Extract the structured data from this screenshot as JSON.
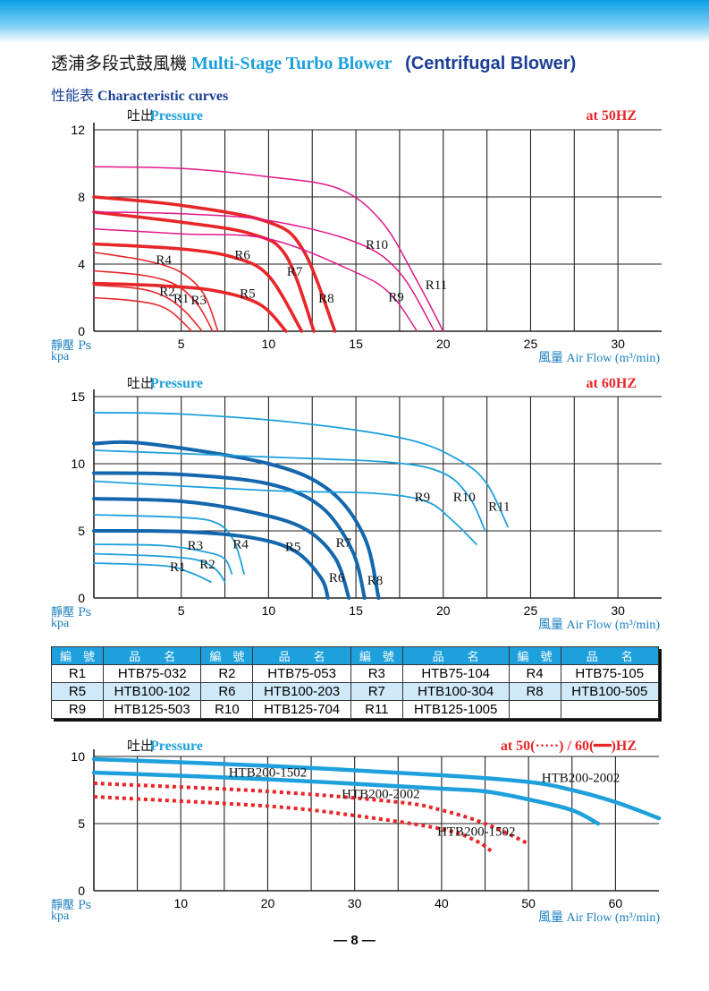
{
  "header": {
    "title_zh": "透浦多段式鼓風機",
    "title_en": "Multi-Stage Turbo Blower",
    "title_en2": "(Centrifugal Blower)",
    "subtitle_zh": "性能表",
    "subtitle_en": "Characteristic curves",
    "page_number": "— 8 —"
  },
  "colors": {
    "red": "#e8262a",
    "magenta": "#e0178a",
    "blue_thick": "#1467ad",
    "blue_thin": "#1ea0dc",
    "axis_label": "#1b7fc0"
  },
  "chart_data": [
    {
      "type": "line",
      "title_zh": "吐出",
      "title_en": "Pressure",
      "freq": "at  50HZ",
      "ylabel_zh": "靜壓 Ps",
      "ylabel_unit": "kpa",
      "xlabel": "風量  Air Flow (m³/min)",
      "xlim": [
        0,
        32.5
      ],
      "ylim": [
        0,
        12
      ],
      "xticks": [
        "5",
        "10",
        "15",
        "20",
        "25",
        "30"
      ],
      "xtick_values": [
        5,
        10,
        15,
        20,
        25,
        30
      ],
      "yticks": [
        "0",
        "4",
        "8",
        "12"
      ],
      "ytick_values": [
        0,
        4,
        8,
        12
      ],
      "xgrid_step": 2.5,
      "ygrid_step": 4,
      "series": [
        {
          "name": "R1",
          "style": "red-thin",
          "label_at": [
            5,
            1.7
          ],
          "points": [
            [
              0,
              2
            ],
            [
              2,
              1.85
            ],
            [
              3.5,
              1.6
            ],
            [
              4.5,
              1.1
            ],
            [
              5.6,
              0
            ]
          ]
        },
        {
          "name": "R2",
          "style": "red-thin",
          "label_at": [
            4.2,
            2.1
          ],
          "points": [
            [
              0,
              2.75
            ],
            [
              2.5,
              2.55
            ],
            [
              4,
              2.1
            ],
            [
              5.2,
              1.2
            ],
            [
              6.2,
              0
            ]
          ]
        },
        {
          "name": "R3",
          "style": "red-thin",
          "label_at": [
            6,
            1.6
          ],
          "points": [
            [
              0,
              3.6
            ],
            [
              3,
              3.3
            ],
            [
              4.8,
              2.7
            ],
            [
              6,
              1.5
            ],
            [
              6.8,
              0
            ]
          ]
        },
        {
          "name": "R4",
          "style": "red-thin",
          "label_at": [
            4,
            4
          ],
          "points": [
            [
              0,
              4.7
            ],
            [
              3,
              4.2
            ],
            [
              5,
              3.5
            ],
            [
              6.3,
              2.2
            ],
            [
              7.1,
              0
            ]
          ]
        },
        {
          "name": "R5",
          "style": "red-thick",
          "label_at": [
            8.8,
            2
          ],
          "points": [
            [
              0,
              2.85
            ],
            [
              4,
              2.7
            ],
            [
              7,
              2.4
            ],
            [
              9.5,
              1.6
            ],
            [
              11,
              0
            ]
          ]
        },
        {
          "name": "R6",
          "style": "red-thick",
          "label_at": [
            8.5,
            4.3
          ],
          "points": [
            [
              0,
              5.2
            ],
            [
              5,
              4.9
            ],
            [
              8,
              4.4
            ],
            [
              10,
              3.3
            ],
            [
              11.9,
              0
            ]
          ]
        },
        {
          "name": "R7",
          "style": "red-thick",
          "label_at": [
            11.5,
            3.3
          ],
          "points": [
            [
              0,
              7.1
            ],
            [
              5,
              6.5
            ],
            [
              9,
              5.8
            ],
            [
              11,
              4.5
            ],
            [
              12.6,
              0
            ]
          ]
        },
        {
          "name": "R8",
          "style": "red-thick",
          "label_at": [
            13.3,
            1.7
          ],
          "points": [
            [
              0,
              8.0
            ],
            [
              5,
              7.5
            ],
            [
              10,
              6.5
            ],
            [
              12,
              4.8
            ],
            [
              13.8,
              0
            ]
          ]
        },
        {
          "name": "R9",
          "style": "magenta",
          "label_at": [
            17.3,
            1.8
          ],
          "points": [
            [
              0,
              6.1
            ],
            [
              5,
              5.8
            ],
            [
              10,
              5.5
            ],
            [
              15,
              3.5
            ],
            [
              17,
              2.2
            ],
            [
              18.5,
              0
            ]
          ]
        },
        {
          "name": "R10",
          "style": "magenta",
          "label_at": [
            16.2,
            4.9
          ],
          "points": [
            [
              0,
              7.1
            ],
            [
              5,
              7.0
            ],
            [
              10,
              6.6
            ],
            [
              15,
              5.3
            ],
            [
              17.5,
              3.5
            ],
            [
              19.5,
              0
            ]
          ]
        },
        {
          "name": "R11",
          "style": "magenta",
          "label_at": [
            19.6,
            2.5
          ],
          "points": [
            [
              0,
              9.8
            ],
            [
              5,
              9.7
            ],
            [
              10,
              9.2
            ],
            [
              14,
              8.5
            ],
            [
              16.5,
              6.5
            ],
            [
              18.5,
              3
            ],
            [
              20,
              0
            ]
          ]
        }
      ]
    },
    {
      "type": "line",
      "title_zh": "吐出",
      "title_en": "Pressure",
      "freq": "at  60HZ",
      "ylabel_zh": "靜壓 Ps",
      "ylabel_unit": "kpa",
      "xlabel": "風量  Air Flow (m³/min)",
      "xlim": [
        0,
        32.5
      ],
      "ylim": [
        0,
        15
      ],
      "xticks": [
        "5",
        "10",
        "15",
        "20",
        "25",
        "30"
      ],
      "xtick_values": [
        5,
        10,
        15,
        20,
        25,
        30
      ],
      "yticks": [
        "0",
        "5",
        "10",
        "15"
      ],
      "ytick_values": [
        0,
        5,
        10,
        15
      ],
      "xgrid_step": 2.5,
      "ygrid_step": 5,
      "series": [
        {
          "name": "R1",
          "style": "blue-thin",
          "label_at": [
            4.8,
            2
          ],
          "points": [
            [
              0,
              2.6
            ],
            [
              4,
              2.4
            ],
            [
              5.5,
              1.9
            ],
            [
              6.7,
              1.2
            ]
          ]
        },
        {
          "name": "R2",
          "style": "blue-thin",
          "label_at": [
            6.5,
            2.2
          ],
          "points": [
            [
              0,
              3.3
            ],
            [
              4,
              3.1
            ],
            [
              6,
              2.8
            ],
            [
              7,
              2.1
            ],
            [
              7.5,
              1.2
            ]
          ]
        },
        {
          "name": "R3",
          "style": "blue-thin",
          "label_at": [
            5.8,
            3.6
          ],
          "points": [
            [
              0,
              4.0
            ],
            [
              4,
              3.9
            ],
            [
              6.5,
              3.4
            ],
            [
              7.5,
              2.9
            ],
            [
              7.9,
              1.8
            ]
          ]
        },
        {
          "name": "R4",
          "style": "blue-thin",
          "label_at": [
            8.4,
            3.7
          ],
          "points": [
            [
              0,
              6.2
            ],
            [
              5,
              6.0
            ],
            [
              7,
              5.6
            ],
            [
              8,
              4.3
            ],
            [
              8.6,
              1.8
            ]
          ]
        },
        {
          "name": "R5",
          "style": "blue-thick",
          "label_at": [
            11.4,
            3.5
          ],
          "points": [
            [
              0,
              5.0
            ],
            [
              5,
              4.95
            ],
            [
              9,
              4.5
            ],
            [
              11.5,
              3.5
            ],
            [
              13,
              1.5
            ],
            [
              13.4,
              0
            ]
          ]
        },
        {
          "name": "R6",
          "style": "blue-thick",
          "label_at": [
            13.9,
            1.2
          ],
          "points": [
            [
              0,
              7.4
            ],
            [
              5,
              7.2
            ],
            [
              9,
              6.4
            ],
            [
              12,
              5.2
            ],
            [
              13.8,
              3
            ],
            [
              14.6,
              0
            ]
          ]
        },
        {
          "name": "R7",
          "style": "blue-thick",
          "label_at": [
            14.3,
            3.8
          ],
          "points": [
            [
              0,
              9.3
            ],
            [
              5,
              9.2
            ],
            [
              10,
              8.5
            ],
            [
              13,
              6.8
            ],
            [
              14.8,
              3.5
            ],
            [
              15.5,
              0
            ]
          ]
        },
        {
          "name": "R8",
          "style": "blue-thick",
          "label_at": [
            16.1,
            1
          ],
          "points": [
            [
              0,
              11.5
            ],
            [
              3,
              11.5
            ],
            [
              10,
              10.0
            ],
            [
              13.5,
              8
            ],
            [
              15.5,
              4.5
            ],
            [
              16.3,
              0
            ]
          ]
        },
        {
          "name": "R9",
          "style": "blue-thin",
          "label_at": [
            18.8,
            7.2
          ],
          "points": [
            [
              0,
              8.7
            ],
            [
              10,
              8.0
            ],
            [
              16,
              7.8
            ],
            [
              19,
              7.2
            ],
            [
              20.5,
              5.8
            ],
            [
              21.9,
              4.0
            ]
          ]
        },
        {
          "name": "R10",
          "style": "blue-thin",
          "label_at": [
            21.2,
            7.2
          ],
          "points": [
            [
              0,
              11.0
            ],
            [
              10,
              10.5
            ],
            [
              17,
              10.1
            ],
            [
              20,
              9.3
            ],
            [
              21.5,
              7.5
            ],
            [
              22.4,
              5.0
            ]
          ]
        },
        {
          "name": "R11",
          "style": "blue-thin",
          "label_at": [
            23.2,
            6.5
          ],
          "points": [
            [
              0,
              13.8
            ],
            [
              5,
              13.7
            ],
            [
              12,
              13.0
            ],
            [
              18,
              11.8
            ],
            [
              21,
              10.2
            ],
            [
              22.5,
              8.5
            ],
            [
              23.7,
              5.3
            ]
          ]
        }
      ]
    },
    {
      "type": "line",
      "title_zh": "吐出",
      "title_en": "Pressure",
      "freq": "at  50(·····) / 60(━━)HZ",
      "ylabel_zh": "靜壓 Ps",
      "ylabel_unit": "kpa",
      "xlabel": "風量  Air Flow (m³/min)",
      "xlim": [
        0,
        65
      ],
      "ylim": [
        0,
        10
      ],
      "xticks": [
        "10",
        "20",
        "30",
        "40",
        "50",
        "60"
      ],
      "xtick_values": [
        10,
        20,
        30,
        40,
        50,
        60
      ],
      "yticks": [
        "0",
        "5",
        "10"
      ],
      "ytick_values": [
        0,
        5,
        10
      ],
      "xgrid_step": 5,
      "ygrid_step": 5,
      "series": [
        {
          "name": "HTB200-2002",
          "freq": "60HZ",
          "style": "blue-solid",
          "label_at": [
            56,
            8.1
          ],
          "points": [
            [
              0,
              9.8
            ],
            [
              20,
              9.3
            ],
            [
              40,
              8.6
            ],
            [
              50,
              8.1
            ],
            [
              55,
              7.5
            ],
            [
              60,
              6.6
            ],
            [
              65,
              5.4
            ]
          ]
        },
        {
          "name": "HTB200-1502",
          "freq": "60HZ",
          "style": "blue-solid",
          "label_at": [
            20,
            8.5
          ],
          "points": [
            [
              0,
              8.8
            ],
            [
              20,
              8.3
            ],
            [
              40,
              7.6
            ],
            [
              45,
              7.4
            ],
            [
              50,
              6.8
            ],
            [
              55,
              6.0
            ],
            [
              58,
              5.0
            ]
          ]
        },
        {
          "name": "HTB200-2002",
          "freq": "50HZ",
          "style": "red-dotted",
          "label_at": [
            33,
            6.9
          ],
          "points": [
            [
              0,
              8.0
            ],
            [
              20,
              7.4
            ],
            [
              35,
              6.6
            ],
            [
              40,
              6.0
            ],
            [
              45,
              5.0
            ],
            [
              50,
              3.5
            ]
          ]
        },
        {
          "name": "HTB200-1502",
          "freq": "50HZ",
          "style": "red-dotted",
          "label_at": [
            44,
            4.1
          ],
          "points": [
            [
              0,
              7.0
            ],
            [
              20,
              6.3
            ],
            [
              30,
              5.6
            ],
            [
              40,
              4.6
            ],
            [
              44,
              3.7
            ],
            [
              46,
              2.8
            ]
          ]
        }
      ]
    }
  ],
  "model_table": {
    "headers": [
      "編　號",
      "品　　名",
      "編　號",
      "品　　名",
      "編　號",
      "品　　名",
      "編　號",
      "品　　名"
    ],
    "rows": [
      [
        "R1",
        "HTB75-032",
        "R2",
        "HTB75-053",
        "R3",
        "HTB75-104",
        "R4",
        "HTB75-105"
      ],
      [
        "R5",
        "HTB100-102",
        "R6",
        "HTB100-203",
        "R7",
        "HTB100-304",
        "R8",
        "HTB100-505"
      ],
      [
        "R9",
        "HTB125-503",
        "R10",
        "HTB125-704",
        "R11",
        "HTB125-1005",
        "",
        ""
      ]
    ]
  }
}
